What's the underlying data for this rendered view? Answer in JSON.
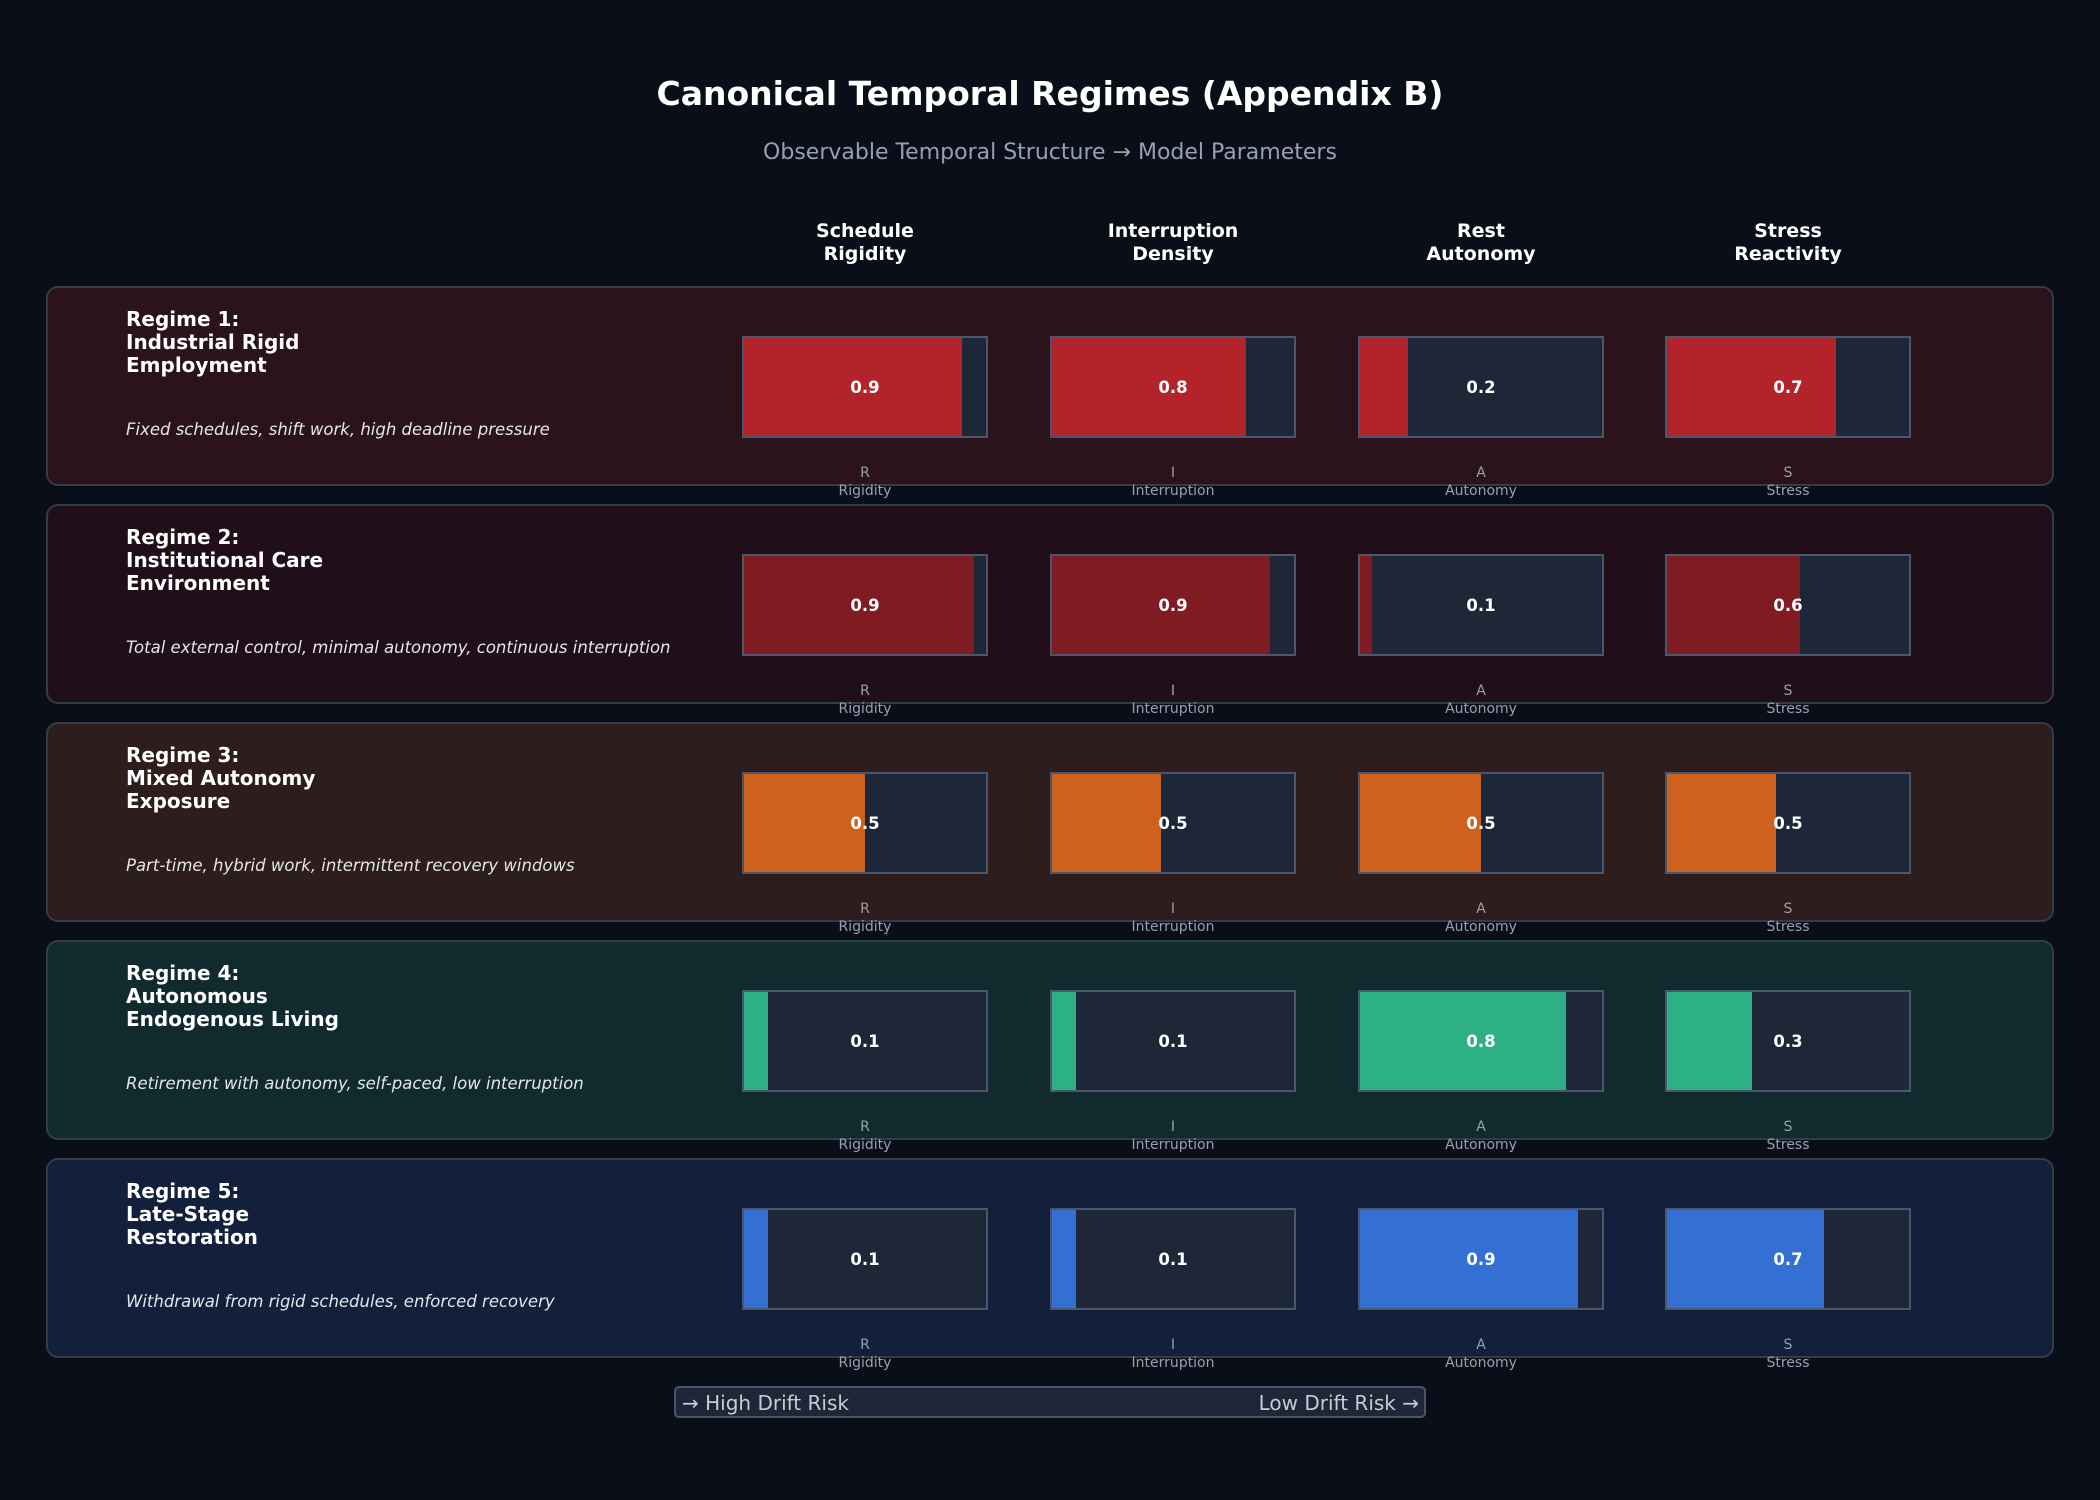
{
  "chart_data": {
    "type": "bar",
    "title": "Canonical Temporal Regimes (Appendix B)",
    "subtitle": "Observable Temporal Structure → Model Parameters",
    "metrics": [
      {
        "header": "Schedule\nRigidity",
        "symbol": "R",
        "short": "Rigidity"
      },
      {
        "header": "Interruption\nDensity",
        "symbol": "I",
        "short": "Interruption"
      },
      {
        "header": "Rest\nAutonomy",
        "symbol": "A",
        "short": "Autonomy"
      },
      {
        "header": "Stress\nReactivity",
        "symbol": "S",
        "short": "Stress"
      }
    ],
    "value_range": [
      0,
      1
    ],
    "regimes": [
      {
        "title": "Regime 1:\nIndustrial Rigid\nEmployment",
        "description": "Fixed schedules, shift work, high deadline pressure",
        "values": [
          0.9,
          0.8,
          0.2,
          0.7
        ],
        "labels": [
          "0.9",
          "0.8",
          "0.2",
          "0.7"
        ],
        "color": "#b3242a",
        "card_bg": "#2b131b"
      },
      {
        "title": "Regime 2:\nInstitutional Care\nEnvironment",
        "description": "Total external control, minimal autonomy, continuous interruption",
        "values": [
          0.95,
          0.9,
          0.05,
          0.55
        ],
        "labels": [
          "0.9",
          "0.9",
          "0.1",
          "0.6"
        ],
        "color": "#7f1b21",
        "card_bg": "#200f18"
      },
      {
        "title": "Regime 3:\nMixed Autonomy\nExposure",
        "description": "Part-time, hybrid work, intermittent recovery windows",
        "values": [
          0.5,
          0.45,
          0.5,
          0.45
        ],
        "labels": [
          "0.5",
          "0.5",
          "0.5",
          "0.5"
        ],
        "color": "#cd611d",
        "card_bg": "#2d1d1c"
      },
      {
        "title": "Regime 4:\nAutonomous\nEndogenous Living",
        "description": "Retirement with autonomy, self-paced, low interruption",
        "values": [
          0.1,
          0.1,
          0.85,
          0.35
        ],
        "labels": [
          "0.1",
          "0.1",
          "0.8",
          "0.3"
        ],
        "color": "#2eb086",
        "card_bg": "#112a2e"
      },
      {
        "title": "Regime 5:\nLate-Stage\nRestoration",
        "description": "Withdrawal from rigid schedules, enforced recovery",
        "values": [
          0.1,
          0.1,
          0.9,
          0.65
        ],
        "labels": [
          "0.1",
          "0.1",
          "0.9",
          "0.7"
        ],
        "color": "#3470d3",
        "card_bg": "#12203b"
      }
    ],
    "legend": {
      "left": "→ High Drift Risk",
      "right": "Low Drift Risk →"
    }
  }
}
